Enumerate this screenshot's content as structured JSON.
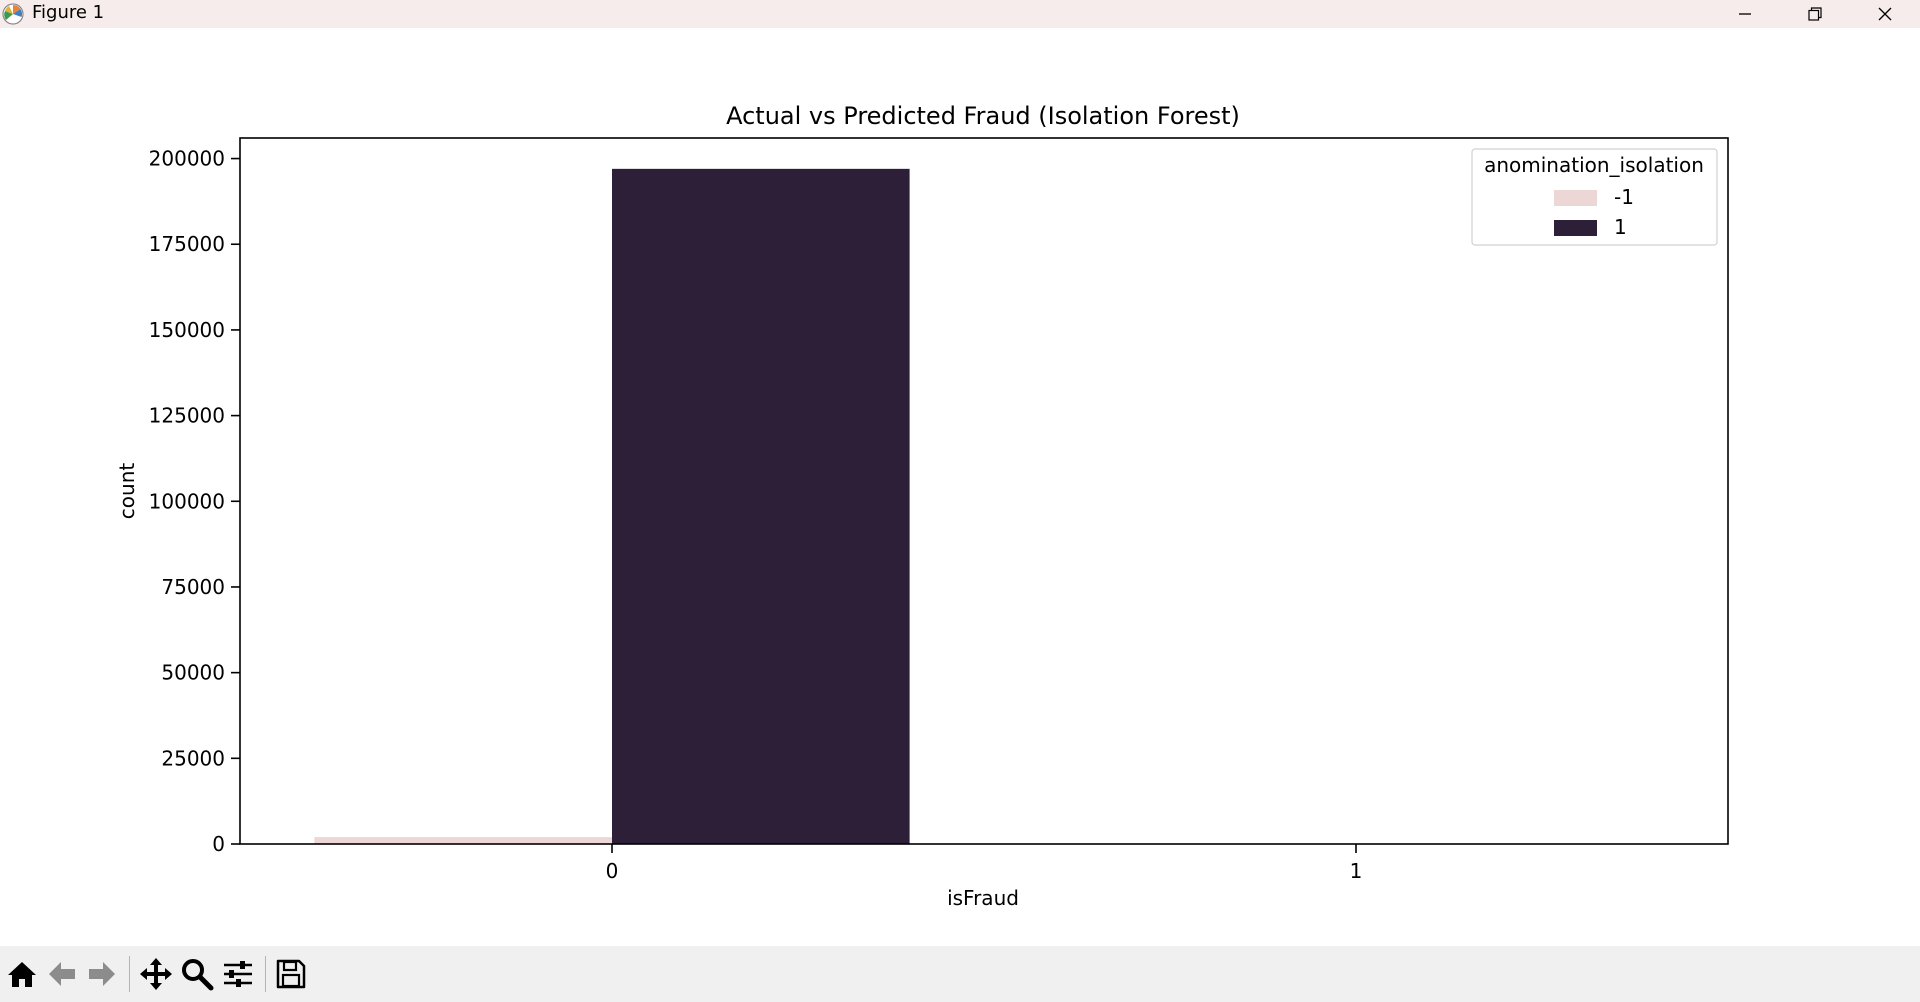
{
  "window": {
    "title": "Figure 1",
    "controls": {
      "minimize": "minimize-icon",
      "maximize": "restore-icon",
      "close": "close-icon"
    }
  },
  "toolbar": {
    "buttons": [
      {
        "name": "home-button",
        "icon": "home-icon"
      },
      {
        "name": "back-button",
        "icon": "arrow-left-icon"
      },
      {
        "name": "forward-button",
        "icon": "arrow-right-icon"
      },
      {
        "name": "pan-button",
        "icon": "move-icon"
      },
      {
        "name": "zoom-button",
        "icon": "magnifier-icon"
      },
      {
        "name": "configure-subplots-button",
        "icon": "sliders-icon"
      },
      {
        "name": "save-button",
        "icon": "floppy-disk-icon"
      }
    ]
  },
  "colors": {
    "series_neg1": "#ecd7d6",
    "series_1": "#2e1f39",
    "axis": "#000000",
    "titlebar": "#f7ecec",
    "toolbar": "#f0f0f0"
  },
  "chart_data": {
    "type": "bar",
    "title": "Actual vs Predicted Fraud (Isolation Forest)",
    "xlabel": "isFraud",
    "ylabel": "count",
    "categories": [
      "0",
      "1"
    ],
    "ylim": [
      0,
      206000
    ],
    "yticks": [
      0,
      25000,
      50000,
      75000,
      100000,
      125000,
      150000,
      175000,
      200000
    ],
    "ytick_labels": [
      "0",
      "25000",
      "50000",
      "75000",
      "100000",
      "125000",
      "150000",
      "175000",
      "200000"
    ],
    "legend": {
      "title": "anomination_isolation",
      "placement": "top-right"
    },
    "series": [
      {
        "name": "-1",
        "values": [
          2000,
          0
        ]
      },
      {
        "name": "1",
        "values": [
          197000,
          0
        ]
      }
    ],
    "grid": false
  }
}
